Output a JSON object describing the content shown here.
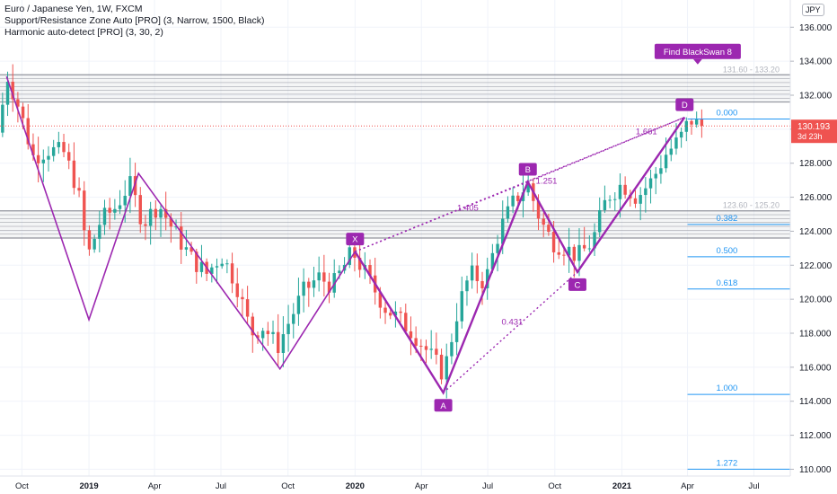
{
  "legend": {
    "title": "Euro / Japanese Yen, 1W, FXCM",
    "indicator1": "Support/Resistance Zone Auto [PRO] (3, Narrow, 1500, Black)",
    "indicator2": "Harmonic auto-detect [PRO] (3, 30, 2)"
  },
  "currency_badge": "JPY",
  "colors": {
    "up": "#26a69a",
    "down": "#ef5350",
    "pattern": "#9c27b0",
    "fib": "#2196f3",
    "zone": "#787b86",
    "price_label": "#ef5350"
  },
  "chart_data": {
    "type": "candlestick",
    "y_range": [
      109.6,
      137.6
    ],
    "y_ticks": [
      110,
      112,
      114,
      116,
      118,
      120,
      122,
      124,
      126,
      128,
      130,
      132,
      134,
      136
    ],
    "y_tick_labels": [
      "110.000",
      "112.000",
      "114.000",
      "116.000",
      "118.000",
      "120.000",
      "122.000",
      "124.000",
      "126.000",
      "128.000",
      "130.000",
      "132.000",
      "134.000",
      "136.000"
    ],
    "x_range": [
      "2018-09-01",
      "2021-08-20"
    ],
    "x_ticks": [
      {
        "date": "2018-10-01",
        "label": "Oct",
        "bold": false
      },
      {
        "date": "2019-01-01",
        "label": "2019",
        "bold": true
      },
      {
        "date": "2019-04-01",
        "label": "Apr",
        "bold": false
      },
      {
        "date": "2019-07-01",
        "label": "Jul",
        "bold": false
      },
      {
        "date": "2019-10-01",
        "label": "Oct",
        "bold": false
      },
      {
        "date": "2020-01-01",
        "label": "2020",
        "bold": true
      },
      {
        "date": "2020-04-01",
        "label": "Apr",
        "bold": false
      },
      {
        "date": "2020-07-01",
        "label": "Jul",
        "bold": false
      },
      {
        "date": "2020-10-01",
        "label": "Oct",
        "bold": false
      },
      {
        "date": "2021-01-01",
        "label": "2021",
        "bold": true
      },
      {
        "date": "2021-04-01",
        "label": "Apr",
        "bold": false
      },
      {
        "date": "2021-07-01",
        "label": "Jul",
        "bold": false
      }
    ],
    "price_path": [
      [
        "2018-09-01",
        129.8
      ],
      [
        "2018-09-15",
        133.1
      ],
      [
        "2018-10-01",
        131.2
      ],
      [
        "2018-10-20",
        128.4
      ],
      [
        "2018-11-10",
        128.8
      ],
      [
        "2018-12-01",
        128.6
      ],
      [
        "2018-12-20",
        126.5
      ],
      [
        "2019-01-03",
        122.5
      ],
      [
        "2019-01-20",
        124.6
      ],
      [
        "2019-02-10",
        125.4
      ],
      [
        "2019-03-01",
        126.8
      ],
      [
        "2019-03-20",
        124.5
      ],
      [
        "2019-04-10",
        125.6
      ],
      [
        "2019-05-01",
        124.0
      ],
      [
        "2019-05-25",
        122.4
      ],
      [
        "2019-06-15",
        121.5
      ],
      [
        "2019-07-05",
        122.6
      ],
      [
        "2019-07-25",
        121.0
      ],
      [
        "2019-08-15",
        118.0
      ],
      [
        "2019-09-01",
        118.4
      ],
      [
        "2019-09-20",
        117.2
      ],
      [
        "2019-10-05",
        118.6
      ],
      [
        "2019-10-25",
        120.4
      ],
      [
        "2019-11-15",
        121.3
      ],
      [
        "2019-12-05",
        120.8
      ],
      [
        "2020-01-01",
        122.8
      ],
      [
        "2020-01-25",
        121.0
      ],
      [
        "2020-02-15",
        119.5
      ],
      [
        "2020-03-05",
        118.8
      ],
      [
        "2020-03-25",
        118.0
      ],
      [
        "2020-04-15",
        116.8
      ],
      [
        "2020-05-05",
        115.6
      ],
      [
        "2020-05-25",
        119.5
      ],
      [
        "2020-06-10",
        121.5
      ],
      [
        "2020-07-01",
        121.0
      ],
      [
        "2020-07-20",
        124.0
      ],
      [
        "2020-08-10",
        125.8
      ],
      [
        "2020-08-28",
        126.8
      ],
      [
        "2020-09-15",
        124.6
      ],
      [
        "2020-10-01",
        123.4
      ],
      [
        "2020-10-20",
        123.0
      ],
      [
        "2020-11-05",
        122.5
      ],
      [
        "2020-11-25",
        123.4
      ],
      [
        "2020-12-15",
        126.0
      ],
      [
        "2021-01-05",
        126.8
      ],
      [
        "2021-01-25",
        126.0
      ],
      [
        "2021-02-15",
        127.0
      ],
      [
        "2021-03-05",
        128.5
      ],
      [
        "2021-03-25",
        129.4
      ],
      [
        "2021-04-08",
        130.6
      ],
      [
        "2021-04-20",
        130.2
      ]
    ],
    "last_price": 130.193,
    "last_price_label": "130.193",
    "countdown_label": "3d 23h",
    "resistance_zones": [
      {
        "low": 131.6,
        "high": 133.2,
        "label": "131.60 - 133.20",
        "label_start": "2021-04-15"
      },
      {
        "low": 123.6,
        "high": 125.2,
        "label": "123.60 - 125.20",
        "label_start": "2021-04-15"
      }
    ],
    "pattern_left": [
      [
        "2018-09-10",
        133.1
      ],
      [
        "2019-01-01",
        118.8
      ],
      [
        "2019-03-10",
        127.4
      ],
      [
        "2019-09-20",
        115.9
      ],
      [
        "2020-01-01",
        122.8
      ]
    ],
    "pattern_main": {
      "points": [
        {
          "label": "X",
          "date": "2020-01-01",
          "price": 122.8
        },
        {
          "label": "A",
          "date": "2020-05-01",
          "price": 114.5
        },
        {
          "label": "B",
          "date": "2020-08-25",
          "price": 126.9
        },
        {
          "label": "C",
          "date": "2020-11-01",
          "price": 121.6
        },
        {
          "label": "D",
          "date": "2021-03-28",
          "price": 130.7
        }
      ],
      "ratios": [
        {
          "label": "1.405",
          "date": "2020-05-20",
          "price": 125.2
        },
        {
          "label": "0.431",
          "date": "2020-07-20",
          "price": 118.5
        },
        {
          "label": "1.251",
          "date": "2020-09-05",
          "price": 126.8
        },
        {
          "label": "1.661",
          "date": "2021-01-20",
          "price": 129.7
        }
      ]
    },
    "fib_levels": [
      {
        "label": "0.000",
        "price": 130.6
      },
      {
        "label": "0.382",
        "price": 124.4
      },
      {
        "label": "0.500",
        "price": 122.5
      },
      {
        "label": "0.618",
        "price": 120.6
      },
      {
        "label": "1.000",
        "price": 114.4
      },
      {
        "label": "1.272",
        "price": 110.0
      }
    ],
    "fib_start": "2021-04-01",
    "callout": {
      "label": "Find BlackSwan 8",
      "date": "2021-04-15",
      "price": 134.6
    }
  }
}
